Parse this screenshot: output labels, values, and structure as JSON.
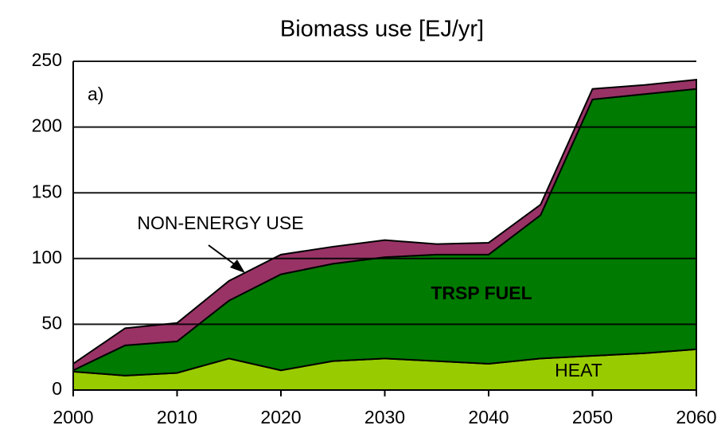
{
  "chart_data": {
    "type": "stacked_area",
    "title": "Biomass use [EJ/yr]",
    "annotations": [
      "a)"
    ],
    "x": [
      2000,
      2005,
      2010,
      2015,
      2020,
      2025,
      2030,
      2035,
      2040,
      2045,
      2050,
      2055,
      2060
    ],
    "series": [
      {
        "name": "HEAT",
        "color": "#99cc00",
        "values": [
          14,
          11,
          13,
          24,
          15,
          22,
          24,
          22,
          20,
          24,
          26,
          28,
          31
        ]
      },
      {
        "name": "TRSP FUEL",
        "color": "#007a00",
        "values": [
          1,
          23,
          24,
          44,
          73,
          74,
          77,
          81,
          83,
          109,
          195,
          197,
          198
        ]
      },
      {
        "name": "NON-ENERGY USE",
        "color": "#993366",
        "values": [
          5,
          13,
          14,
          15,
          15,
          13,
          13,
          8,
          9,
          8,
          8,
          7,
          7
        ]
      }
    ],
    "xlim": [
      2000,
      2060
    ],
    "xticks": [
      2000,
      2010,
      2020,
      2030,
      2040,
      2050,
      2060
    ],
    "ylim": [
      0,
      250
    ],
    "yticks": [
      0,
      50,
      100,
      150,
      200,
      250
    ],
    "grid": true
  }
}
